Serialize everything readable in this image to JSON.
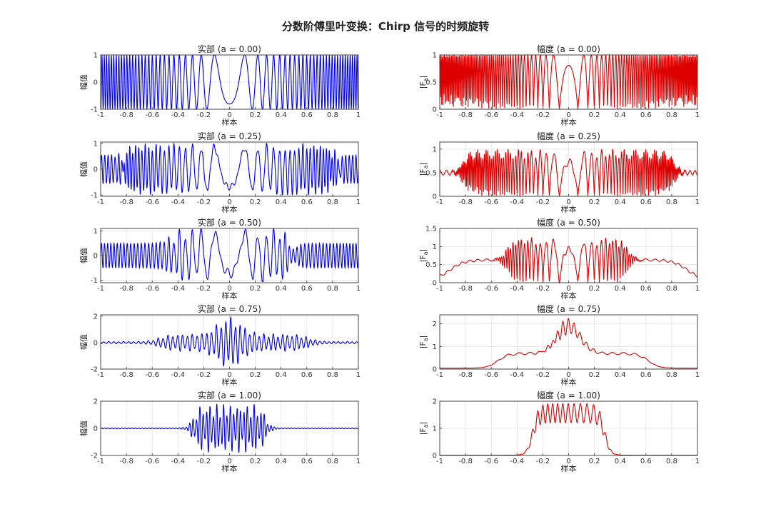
{
  "figure": {
    "title": "分数阶傅里叶变换：Chirp 信号的时频旋转"
  },
  "chart_data": [
    {
      "type": "line",
      "panel": "real",
      "order": 0.0,
      "title": "实部  (a = 0.00)",
      "xlabel": "样本",
      "ylabel": "幅值",
      "xlim": [
        -1,
        1
      ],
      "ylim": [
        -1,
        1
      ],
      "yticks": [
        -1,
        0,
        1
      ],
      "xticks": [
        -1,
        -0.8,
        -0.6,
        -0.4,
        -0.2,
        0,
        0.2,
        0.4,
        0.6,
        0.8,
        1
      ],
      "grid": true,
      "color": "#0000ee"
    },
    {
      "type": "line",
      "panel": "magnitude",
      "order": 0.0,
      "title": "幅度  (a = 0.00)",
      "xlabel": "样本",
      "ylabel": "|F_a|",
      "xlim": [
        -1,
        1
      ],
      "ylim": [
        0,
        1
      ],
      "yticks": [
        0,
        0.5,
        1
      ],
      "xticks": [
        -1,
        -0.8,
        -0.6,
        -0.4,
        -0.2,
        0,
        0.2,
        0.4,
        0.6,
        0.8,
        1
      ],
      "grid": true,
      "color": "#dd0000"
    },
    {
      "type": "line",
      "panel": "real",
      "order": 0.25,
      "title": "实部  (a = 0.25)",
      "xlabel": "样本",
      "ylabel": "幅值",
      "xlim": [
        -1,
        1
      ],
      "ylim": [
        -1.05,
        1.05
      ],
      "yticks": [
        -1,
        0,
        1
      ],
      "xticks": [
        -1,
        -0.8,
        -0.6,
        -0.4,
        -0.2,
        0,
        0.2,
        0.4,
        0.6,
        0.8,
        1
      ],
      "grid": true,
      "color": "#0000ee"
    },
    {
      "type": "line",
      "panel": "magnitude",
      "order": 0.25,
      "title": "幅度  (a = 0.25)",
      "xlabel": "样本",
      "ylabel": "|F_a|",
      "xlim": [
        -1,
        1
      ],
      "ylim": [
        0,
        1.15
      ],
      "yticks": [
        0,
        0.5,
        1
      ],
      "xticks": [
        -1,
        -0.8,
        -0.6,
        -0.4,
        -0.2,
        0,
        0.2,
        0.4,
        0.6,
        0.8,
        1
      ],
      "grid": true,
      "color": "#dd0000"
    },
    {
      "type": "line",
      "panel": "real",
      "order": 0.5,
      "title": "实部  (a = 0.50)",
      "xlabel": "样本",
      "ylabel": "幅值",
      "xlim": [
        -1,
        1
      ],
      "ylim": [
        -1.1,
        1.1
      ],
      "yticks": [
        -1,
        0,
        1
      ],
      "xticks": [
        -1,
        -0.8,
        -0.6,
        -0.4,
        -0.2,
        0,
        0.2,
        0.4,
        0.6,
        0.8,
        1
      ],
      "grid": true,
      "color": "#0000ee"
    },
    {
      "type": "line",
      "panel": "magnitude",
      "order": 0.5,
      "title": "幅度  (a = 0.50)",
      "xlabel": "样本",
      "ylabel": "|F_a|",
      "xlim": [
        -1,
        1
      ],
      "ylim": [
        0,
        1.5
      ],
      "yticks": [
        0,
        0.5,
        1,
        1.5
      ],
      "xticks": [
        -1,
        -0.8,
        -0.6,
        -0.4,
        -0.2,
        0,
        0.2,
        0.4,
        0.6,
        0.8,
        1
      ],
      "grid": true,
      "color": "#dd0000"
    },
    {
      "type": "line",
      "panel": "real",
      "order": 0.75,
      "title": "实部  (a = 0.75)",
      "xlabel": "样本",
      "ylabel": "幅值",
      "xlim": [
        -1,
        1
      ],
      "ylim": [
        -2,
        2.1
      ],
      "yticks": [
        -2,
        0,
        2
      ],
      "xticks": [
        -1,
        -0.8,
        -0.6,
        -0.4,
        -0.2,
        0,
        0.2,
        0.4,
        0.6,
        0.8,
        1
      ],
      "grid": true,
      "color": "#0000ee"
    },
    {
      "type": "line",
      "panel": "magnitude",
      "order": 0.75,
      "title": "幅度  (a = 0.75)",
      "xlabel": "样本",
      "ylabel": "|F_a|",
      "xlim": [
        -1,
        1
      ],
      "ylim": [
        0,
        2.4
      ],
      "yticks": [
        0,
        1,
        2
      ],
      "xticks": [
        -1,
        -0.8,
        -0.6,
        -0.4,
        -0.2,
        0,
        0.2,
        0.4,
        0.6,
        0.8,
        1
      ],
      "grid": true,
      "color": "#dd0000"
    },
    {
      "type": "line",
      "panel": "real",
      "order": 1.0,
      "title": "实部  (a = 1.00)",
      "xlabel": "样本",
      "ylabel": "幅值",
      "xlim": [
        -1,
        1
      ],
      "ylim": [
        -2,
        2
      ],
      "yticks": [
        -2,
        0,
        2
      ],
      "xticks": [
        -1,
        -0.8,
        -0.6,
        -0.4,
        -0.2,
        0,
        0.2,
        0.4,
        0.6,
        0.8,
        1
      ],
      "grid": true,
      "color": "#0000ee"
    },
    {
      "type": "line",
      "panel": "magnitude",
      "order": 1.0,
      "title": "幅度  (a = 1.00)",
      "xlabel": "样本",
      "ylabel": "|F_a|",
      "xlim": [
        -1,
        1
      ],
      "ylim": [
        0,
        2
      ],
      "yticks": [
        0,
        1,
        2
      ],
      "xticks": [
        -1,
        -0.8,
        -0.6,
        -0.4,
        -0.2,
        0,
        0.2,
        0.4,
        0.6,
        0.8,
        1
      ],
      "grid": true,
      "color": "#dd0000"
    }
  ]
}
